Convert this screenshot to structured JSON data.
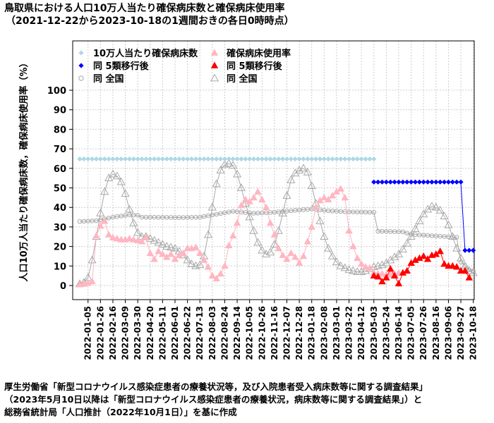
{
  "title": "鳥取県における人口10万人当たり確保病床数と確保病床使用率",
  "subtitle": "（2021-12-22から2023-10-18の1週間おきの各日0時時点）",
  "source": [
    "厚生労働省「新型コロナウイルス感染症患者の療養状況等，及び入院患者受入病床数等に関する調査結果」",
    "（2023年5月10日以降は「新型コロナウイルス感染症患者の療養状況，病床数等に関する調査結果」）と",
    "総務省統計局「人口推計（2022年10月1日）」を基に作成"
  ],
  "colors": {
    "beds_pref": "#add8e6",
    "beds_pref_post": "#0000ff",
    "beds_national": "#a9a9a9",
    "usage_pref": "#ffb6c1",
    "usage_pref_post": "#ff0000",
    "usage_national": "#a9a9a9",
    "grid": "#cccccc"
  },
  "chart_data": {
    "type": "line",
    "ylabel": "人口10万人当たり確保病床数，確保病床使用率（%）",
    "ylim": [
      0,
      100
    ],
    "yticks": [
      0,
      10,
      20,
      30,
      40,
      50,
      60,
      70,
      80,
      90,
      100
    ],
    "grid": true,
    "legend_position": "top-left",
    "xlim": [
      "2021-12-22",
      "2023-10-18"
    ],
    "xticks": [
      "2022-01-05",
      "2022-01-26",
      "2022-02-16",
      "2022-03-09",
      "2022-03-30",
      "2022-04-20",
      "2022-05-11",
      "2022-06-01",
      "2022-06-22",
      "2022-07-13",
      "2022-08-03",
      "2022-08-24",
      "2022-09-14",
      "2022-10-05",
      "2022-10-26",
      "2022-11-16",
      "2022-12-07",
      "2022-12-28",
      "2023-01-18",
      "2023-02-08",
      "2023-03-01",
      "2023-03-22",
      "2023-04-12",
      "2023-05-03",
      "2023-05-24",
      "2023-06-14",
      "2023-07-05",
      "2023-07-26",
      "2023-08-16",
      "2023-09-06",
      "2023-09-27",
      "2023-10-18"
    ],
    "legend": [
      {
        "label": "10万人当たり確保病床数",
        "marker": "diamond",
        "series": "beds_pref"
      },
      {
        "label": "確保病床使用率",
        "marker": "triangle",
        "series": "usage_pref"
      },
      {
        "label": "同 5類移行後",
        "marker": "diamond",
        "series": "beds_pref_post"
      },
      {
        "label": "同 5類移行後",
        "marker": "triangle",
        "series": "usage_pref_post"
      },
      {
        "label": "同 全国",
        "marker": "circle-open",
        "series": "beds_national"
      },
      {
        "label": "同 全国",
        "marker": "triangle-open",
        "series": "usage_national"
      }
    ],
    "series": {
      "beds_pref": [
        [
          0,
          64.8
        ],
        [
          71,
          64.8
        ]
      ],
      "beds_pref_post": [
        [
          71,
          53.0
        ],
        [
          92,
          53.0
        ],
        [
          93,
          18.0
        ],
        [
          95,
          18.0
        ]
      ],
      "beds_national": [
        [
          0,
          32.8
        ],
        [
          4,
          33.2
        ],
        [
          8,
          35.0
        ],
        [
          12,
          36.2
        ],
        [
          14,
          36.0
        ],
        [
          15,
          35.0
        ],
        [
          25,
          34.8
        ],
        [
          29,
          35.0
        ],
        [
          33,
          36.5
        ],
        [
          37,
          38.0
        ],
        [
          42,
          37.0
        ],
        [
          47,
          37.5
        ],
        [
          52,
          38.5
        ],
        [
          56,
          39.2
        ],
        [
          60,
          38.3
        ],
        [
          64,
          37.8
        ],
        [
          71,
          37.5
        ],
        [
          72,
          27.8
        ],
        [
          78,
          27.5
        ],
        [
          80,
          26.2
        ],
        [
          85,
          25.5
        ],
        [
          89,
          25.0
        ],
        [
          91,
          24.7
        ],
        [
          92,
          12.0
        ],
        [
          94,
          8.0
        ],
        [
          95,
          7.5
        ]
      ],
      "usage_national": [
        [
          0,
          0.8
        ],
        [
          1,
          1.5
        ],
        [
          2,
          4.0
        ],
        [
          3,
          13.0
        ],
        [
          4,
          25.0
        ],
        [
          5,
          37.0
        ],
        [
          6,
          48.0
        ],
        [
          7,
          55.0
        ],
        [
          8,
          57.0
        ],
        [
          9,
          56.0
        ],
        [
          10,
          53.0
        ],
        [
          11,
          47.0
        ],
        [
          12,
          39.0
        ],
        [
          13,
          32.0
        ],
        [
          14,
          27.0
        ],
        [
          15,
          25.0
        ],
        [
          16,
          25.0
        ],
        [
          17,
          24.0
        ],
        [
          18,
          23.0
        ],
        [
          19,
          22.0
        ],
        [
          20,
          21.0
        ],
        [
          21,
          20.0
        ],
        [
          22,
          19.5
        ],
        [
          23,
          19.0
        ],
        [
          24,
          17.5
        ],
        [
          25,
          15.5
        ],
        [
          26,
          13.0
        ],
        [
          27,
          11.0
        ],
        [
          28,
          10.0
        ],
        [
          29,
          10.5
        ],
        [
          30,
          15.0
        ],
        [
          31,
          26.0
        ],
        [
          32,
          40.0
        ],
        [
          33,
          52.0
        ],
        [
          34,
          59.0
        ],
        [
          35,
          62.0
        ],
        [
          36,
          62.5
        ],
        [
          37,
          61.5
        ],
        [
          38,
          57.0
        ],
        [
          39,
          50.0
        ],
        [
          40,
          42.0
        ],
        [
          41,
          35.0
        ],
        [
          42,
          28.0
        ],
        [
          43,
          22.0
        ],
        [
          44,
          18.0
        ],
        [
          45,
          16.0
        ],
        [
          46,
          17.0
        ],
        [
          47,
          21.0
        ],
        [
          48,
          28.0
        ],
        [
          49,
          37.0
        ],
        [
          50,
          46.0
        ],
        [
          51,
          54.0
        ],
        [
          52,
          57.5
        ],
        [
          53,
          59.0
        ],
        [
          54,
          60.0
        ],
        [
          55,
          58.0
        ],
        [
          56,
          51.0
        ],
        [
          57,
          42.0
        ],
        [
          58,
          33.0
        ],
        [
          59,
          25.0
        ],
        [
          60,
          19.0
        ],
        [
          61,
          15.0
        ],
        [
          62,
          12.0
        ],
        [
          63,
          10.0
        ],
        [
          64,
          9.0
        ],
        [
          65,
          8.0
        ],
        [
          66,
          7.5
        ],
        [
          67,
          7.0
        ],
        [
          68,
          7.0
        ],
        [
          69,
          7.5
        ],
        [
          70,
          8.5
        ],
        [
          71,
          9.5
        ],
        [
          72,
          10.0
        ],
        [
          73,
          10.5
        ],
        [
          74,
          11.5
        ],
        [
          75,
          13.0
        ],
        [
          76,
          14.5
        ],
        [
          77,
          16.0
        ],
        [
          78,
          18.5
        ],
        [
          79,
          21.5
        ],
        [
          80,
          25.0
        ],
        [
          81,
          29.0
        ],
        [
          82,
          33.0
        ],
        [
          83,
          36.5
        ],
        [
          84,
          39.0
        ],
        [
          85,
          40.5
        ],
        [
          86,
          40.0
        ],
        [
          87,
          38.5
        ],
        [
          88,
          35.5
        ],
        [
          89,
          31.0
        ],
        [
          90,
          25.0
        ],
        [
          91,
          19.0
        ],
        [
          92,
          14.0
        ],
        [
          93,
          10.0
        ],
        [
          94,
          7.5
        ],
        [
          95,
          6.5
        ]
      ],
      "usage_pref": [
        [
          0,
          0.5
        ],
        [
          1,
          0.8
        ],
        [
          2,
          1.2
        ],
        [
          3,
          2.0
        ],
        [
          4,
          25.5
        ],
        [
          5,
          30.5
        ],
        [
          6,
          33.0
        ],
        [
          7,
          26.0
        ],
        [
          8,
          24.5
        ],
        [
          9,
          24.0
        ],
        [
          10,
          23.5
        ],
        [
          11,
          23.5
        ],
        [
          12,
          24.0
        ],
        [
          13,
          23.5
        ],
        [
          14,
          23.0
        ],
        [
          15,
          22.5
        ],
        [
          16,
          24.5
        ],
        [
          17,
          16.5
        ],
        [
          18,
          13.5
        ],
        [
          19,
          17.5
        ],
        [
          20,
          16.0
        ],
        [
          21,
          14.5
        ],
        [
          22,
          16.0
        ],
        [
          23,
          13.5
        ],
        [
          24,
          15.5
        ],
        [
          25,
          16.5
        ],
        [
          26,
          19.0
        ],
        [
          27,
          19.0
        ],
        [
          28,
          19.5
        ],
        [
          29,
          16.5
        ],
        [
          30,
          13.0
        ],
        [
          31,
          9.5
        ],
        [
          32,
          5.0
        ],
        [
          33,
          3.5
        ],
        [
          34,
          6.0
        ],
        [
          35,
          10.0
        ],
        [
          36,
          20.5
        ],
        [
          37,
          25.5
        ],
        [
          38,
          32.0
        ],
        [
          39,
          41.0
        ],
        [
          40,
          44.0
        ],
        [
          41,
          43.0
        ],
        [
          42,
          45.0
        ],
        [
          43,
          48.0
        ],
        [
          44,
          44.0
        ],
        [
          45,
          40.0
        ],
        [
          46,
          32.0
        ],
        [
          47,
          26.0
        ],
        [
          48,
          19.0
        ],
        [
          49,
          15.5
        ],
        [
          50,
          13.5
        ],
        [
          51,
          16.5
        ],
        [
          52,
          14.5
        ],
        [
          53,
          11.5
        ],
        [
          54,
          15.0
        ],
        [
          55,
          22.5
        ],
        [
          56,
          30.0
        ],
        [
          57,
          40.0
        ],
        [
          58,
          43.5
        ],
        [
          59,
          45.0
        ],
        [
          60,
          44.0
        ],
        [
          61,
          46.0
        ],
        [
          62,
          48.0
        ],
        [
          63,
          49.5
        ],
        [
          64,
          45.0
        ],
        [
          65,
          28.0
        ],
        [
          66,
          20.0
        ],
        [
          67,
          14.0
        ],
        [
          68,
          11.0
        ],
        [
          69,
          9.5
        ],
        [
          70,
          9.0
        ],
        [
          71,
          6.5
        ],
        [
          72,
          6.0
        ],
        [
          73,
          6.0
        ],
        [
          74,
          5.5
        ],
        [
          75,
          5.5
        ],
        [
          76,
          6.0
        ],
        [
          77,
          6.5
        ]
      ],
      "usage_pref_post": [
        [
          71,
          5.0
        ],
        [
          72,
          4.5
        ],
        [
          73,
          2.0
        ],
        [
          74,
          4.0
        ],
        [
          75,
          8.5
        ],
        [
          76,
          5.0
        ],
        [
          77,
          1.0
        ],
        [
          78,
          6.5
        ],
        [
          79,
          7.5
        ],
        [
          80,
          11.5
        ],
        [
          81,
          13.0
        ],
        [
          82,
          14.0
        ],
        [
          83,
          15.0
        ],
        [
          84,
          13.5
        ],
        [
          85,
          15.5
        ],
        [
          86,
          16.0
        ],
        [
          87,
          17.5
        ],
        [
          88,
          11.0
        ],
        [
          89,
          10.0
        ],
        [
          90,
          10.0
        ],
        [
          91,
          9.5
        ],
        [
          92,
          7.5
        ],
        [
          93,
          7.5
        ],
        [
          94,
          4.0
        ]
      ]
    }
  }
}
